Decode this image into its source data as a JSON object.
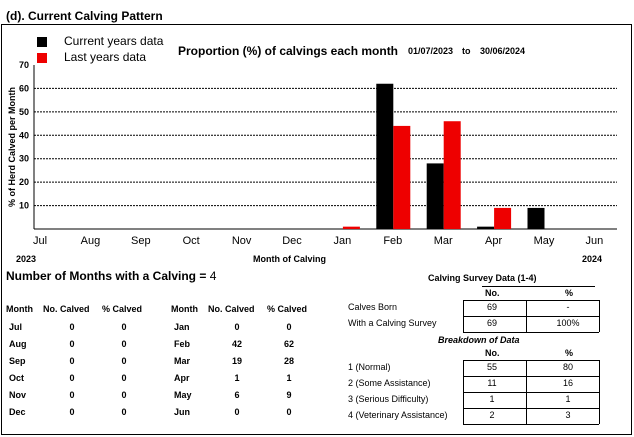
{
  "section_title": "(d). Current Calving Pattern",
  "legend": {
    "current_label": "Current years data",
    "last_label": "Last years data",
    "current_color": "#000000",
    "last_color": "#ee0000"
  },
  "chart_title": "Proportion (%) of calvings each month",
  "date_from": "01/07/2023",
  "date_to_word": "to",
  "date_to": "30/06/2024",
  "year_start": "2023",
  "year_end": "2024",
  "chart_data": {
    "type": "bar",
    "title": "Proportion (%) of calvings each month",
    "xlabel": "Month of Calving",
    "ylabel": "% of Herd Calved per Month",
    "ylim": [
      0,
      70
    ],
    "yticks": [
      10,
      20,
      30,
      40,
      50,
      60,
      70
    ],
    "grid": true,
    "categories": [
      "Jul",
      "Aug",
      "Sep",
      "Oct",
      "Nov",
      "Dec",
      "Jan",
      "Feb",
      "Mar",
      "Apr",
      "May",
      "Jun"
    ],
    "series": [
      {
        "name": "Current years data",
        "color": "#000000",
        "values": [
          0,
          0,
          0,
          0,
          0,
          0,
          0,
          62,
          28,
          1,
          9,
          0
        ]
      },
      {
        "name": "Last years data",
        "color": "#ee0000",
        "values": [
          0,
          0,
          0,
          0,
          0,
          0,
          1,
          44,
          46,
          9,
          0,
          0
        ]
      }
    ]
  },
  "months_with_calving": {
    "label": "Number of Months with a Calving =",
    "value": "4"
  },
  "calved_table": {
    "headers": [
      "Month",
      "No. Calved",
      "% Calved"
    ],
    "left": [
      [
        "Jul",
        "0",
        "0"
      ],
      [
        "Aug",
        "0",
        "0"
      ],
      [
        "Sep",
        "0",
        "0"
      ],
      [
        "Oct",
        "0",
        "0"
      ],
      [
        "Nov",
        "0",
        "0"
      ],
      [
        "Dec",
        "0",
        "0"
      ]
    ],
    "right": [
      [
        "Jan",
        "0",
        "0"
      ],
      [
        "Feb",
        "42",
        "62"
      ],
      [
        "Mar",
        "19",
        "28"
      ],
      [
        "Apr",
        "1",
        "1"
      ],
      [
        "May",
        "6",
        "9"
      ],
      [
        "Jun",
        "0",
        "0"
      ]
    ]
  },
  "survey": {
    "title": "Calving Survey Data (1-4)",
    "col_no": "No.",
    "col_pct": "%",
    "rows": [
      [
        "Calves Born",
        "69",
        "-"
      ],
      [
        "With a Calving Survey",
        "69",
        "100%"
      ]
    ],
    "breakdown_title": "Breakdown of Data",
    "breakdown_rows": [
      [
        "1 (Normal)",
        "55",
        "80"
      ],
      [
        "2 (Some Assistance)",
        "11",
        "16"
      ],
      [
        "3 (Serious Difficulty)",
        "1",
        "1"
      ],
      [
        "4 (Veterinary Assistance)",
        "2",
        "3"
      ]
    ]
  }
}
